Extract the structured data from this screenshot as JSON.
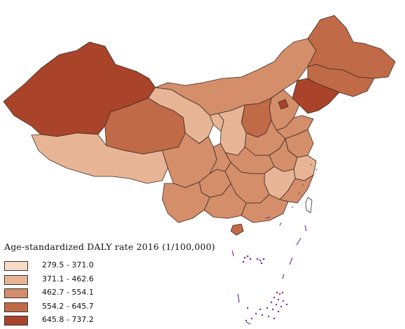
{
  "legend": {
    "title": "Age-standardized DALY rate 2016 (1/100,000)",
    "classes": [
      {
        "label": "279.5 - 371.0",
        "color": "#f6dcc8"
      },
      {
        "label": "371.1 - 462.6",
        "color": "#e7b596"
      },
      {
        "label": "462.7 - 554.1",
        "color": "#d48e6a"
      },
      {
        "label": "554.2 - 645.7",
        "color": "#c16a47"
      },
      {
        "label": "645.8 - 737.2",
        "color": "#a9442a"
      }
    ]
  },
  "colors": {
    "border": "#3a2a22",
    "island_dots": "#7a2aa0",
    "dashes": "#6b3a8f"
  }
}
